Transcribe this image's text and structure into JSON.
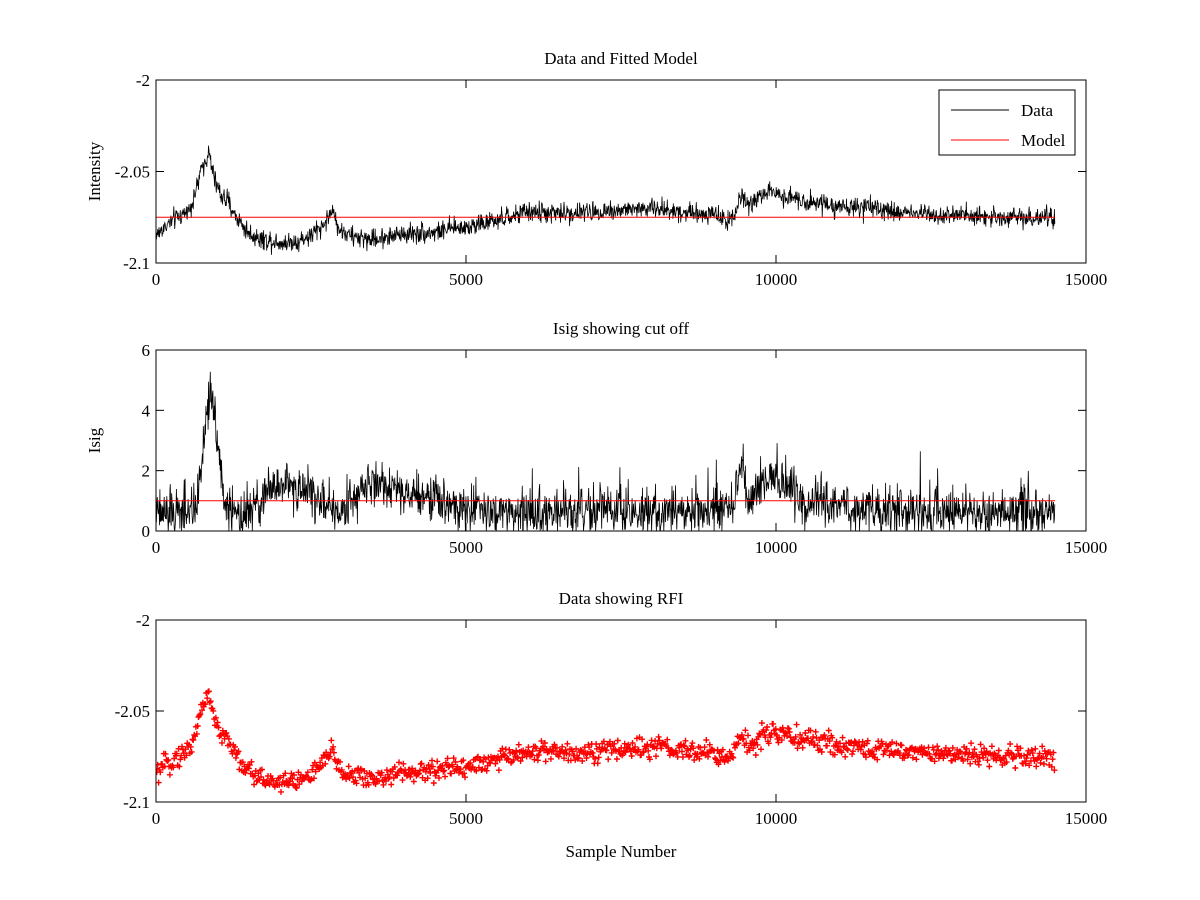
{
  "figure": {
    "background": "#ffffff"
  },
  "colors": {
    "data": "#000000",
    "model": "#ff0000",
    "rfi": "#ff0000",
    "axes": "#000000"
  },
  "chart_data": [
    {
      "type": "line",
      "title": "Data and Fitted Model",
      "xlabel": "",
      "ylabel": "Intensity",
      "xlim": [
        0,
        15000
      ],
      "ylim": [
        -2.1,
        -2.0
      ],
      "xticks": [
        0,
        5000,
        10000,
        15000
      ],
      "xtick_labels": [
        "0",
        "5000",
        "10000",
        "15000"
      ],
      "yticks": [
        -2.1,
        -2.05,
        -2.0
      ],
      "ytick_labels": [
        "-2.1",
        "-2.05",
        "-2"
      ],
      "grid": false,
      "legend": {
        "placement": "top-right",
        "entries": [
          "Data",
          "Model"
        ]
      },
      "series": [
        {
          "name": "Data",
          "color": "#000000",
          "noise": 0.004,
          "x": [
            0,
            150,
            300,
            450,
            550,
            650,
            750,
            850,
            950,
            1050,
            1150,
            1300,
            1500,
            1700,
            1900,
            2100,
            2300,
            2500,
            2700,
            2800,
            2850,
            2900,
            3000,
            3200,
            3500,
            4000,
            4500,
            5000,
            5500,
            5800,
            6000,
            6500,
            7000,
            7500,
            8000,
            8500,
            9000,
            9200,
            9350,
            9450,
            9550,
            9650,
            9800,
            10000,
            10500,
            11000,
            12000,
            13000,
            14000,
            14500
          ],
          "y": [
            -2.085,
            -2.08,
            -2.076,
            -2.073,
            -2.07,
            -2.06,
            -2.047,
            -2.04,
            -2.055,
            -2.063,
            -2.066,
            -2.075,
            -2.084,
            -2.087,
            -2.088,
            -2.089,
            -2.088,
            -2.085,
            -2.079,
            -2.074,
            -2.071,
            -2.077,
            -2.083,
            -2.086,
            -2.087,
            -2.084,
            -2.083,
            -2.08,
            -2.077,
            -2.074,
            -2.072,
            -2.073,
            -2.072,
            -2.071,
            -2.07,
            -2.072,
            -2.073,
            -2.077,
            -2.072,
            -2.062,
            -2.07,
            -2.066,
            -2.062,
            -2.062,
            -2.066,
            -2.069,
            -2.072,
            -2.074,
            -2.075,
            -2.076
          ]
        },
        {
          "name": "Model",
          "color": "#ff0000",
          "x": [
            0,
            14500
          ],
          "y": [
            -2.075,
            -2.075
          ]
        }
      ]
    },
    {
      "type": "line",
      "title": "Isig showing cut off",
      "xlabel": "",
      "ylabel": "Isig",
      "xlim": [
        0,
        15000
      ],
      "ylim": [
        0,
        6
      ],
      "xticks": [
        0,
        5000,
        10000,
        15000
      ],
      "xtick_labels": [
        "0",
        "5000",
        "10000",
        "15000"
      ],
      "yticks": [
        0,
        2,
        4,
        6
      ],
      "ytick_labels": [
        "0",
        "2",
        "4",
        "6"
      ],
      "grid": false,
      "series": [
        {
          "color": "#000000",
          "noise": 0.55,
          "x": [
            0,
            300,
            600,
            700,
            800,
            900,
            1000,
            1100,
            1300,
            1600,
            1800,
            2100,
            2500,
            2800,
            3000,
            3200,
            3500,
            4000,
            4500,
            5000,
            5500,
            6000,
            7000,
            8000,
            9000,
            9300,
            9400,
            9450,
            9550,
            9700,
            9900,
            10100,
            10400,
            11000,
            12000,
            13000,
            14000,
            14500
          ],
          "y": [
            0.6,
            0.6,
            0.5,
            1.5,
            3.6,
            4.6,
            3.0,
            0.9,
            0.4,
            0.7,
            1.2,
            1.6,
            1.3,
            0.7,
            0.5,
            1.3,
            1.6,
            1.4,
            1.1,
            0.8,
            0.6,
            0.6,
            0.6,
            0.6,
            0.6,
            0.8,
            2.0,
            2.4,
            0.6,
            1.3,
            2.0,
            1.6,
            0.9,
            0.8,
            0.6,
            0.6,
            0.6,
            0.6
          ]
        },
        {
          "color": "#ff0000",
          "x": [
            0,
            14500
          ],
          "y": [
            1,
            1
          ]
        }
      ]
    },
    {
      "type": "scatter",
      "title": "Data showing RFI",
      "xlabel": "Sample Number",
      "ylabel": "",
      "xlim": [
        0,
        15000
      ],
      "ylim": [
        -2.1,
        -2.0
      ],
      "xticks": [
        0,
        5000,
        10000,
        15000
      ],
      "xtick_labels": [
        "0",
        "5000",
        "10000",
        "15000"
      ],
      "yticks": [
        -2.1,
        -2.05,
        -2.0
      ],
      "ytick_labels": [
        "-2.1",
        "-2.05",
        "-2"
      ],
      "grid": false,
      "series": [
        {
          "color": "#ff0000",
          "marker": "+",
          "noise": 0.004,
          "x": [
            0,
            150,
            300,
            450,
            550,
            650,
            750,
            850,
            950,
            1050,
            1150,
            1300,
            1500,
            1700,
            1900,
            2100,
            2300,
            2500,
            2700,
            2800,
            2850,
            2900,
            3000,
            3200,
            3500,
            4000,
            4500,
            5000,
            5500,
            5800,
            6000,
            6500,
            7000,
            7500,
            8000,
            8500,
            9000,
            9200,
            9350,
            9450,
            9550,
            9650,
            9800,
            10000,
            10500,
            11000,
            12000,
            13000,
            14000,
            14500
          ],
          "y": [
            -2.085,
            -2.08,
            -2.076,
            -2.073,
            -2.07,
            -2.06,
            -2.047,
            -2.04,
            -2.055,
            -2.063,
            -2.066,
            -2.075,
            -2.084,
            -2.087,
            -2.088,
            -2.089,
            -2.088,
            -2.085,
            -2.079,
            -2.074,
            -2.071,
            -2.077,
            -2.083,
            -2.086,
            -2.087,
            -2.084,
            -2.083,
            -2.08,
            -2.077,
            -2.074,
            -2.072,
            -2.073,
            -2.072,
            -2.071,
            -2.07,
            -2.072,
            -2.073,
            -2.077,
            -2.072,
            -2.062,
            -2.07,
            -2.066,
            -2.062,
            -2.062,
            -2.066,
            -2.069,
            -2.072,
            -2.074,
            -2.075,
            -2.076
          ]
        }
      ]
    }
  ]
}
